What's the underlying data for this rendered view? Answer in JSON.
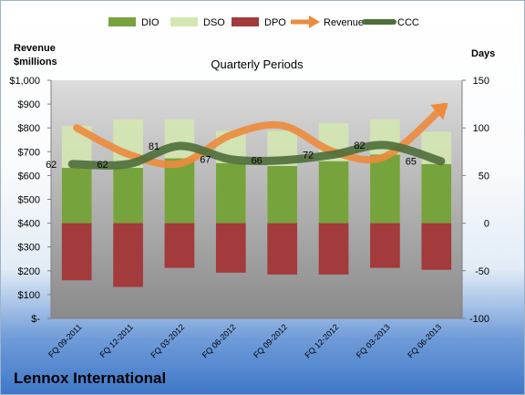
{
  "chart_data": {
    "type": "bar",
    "title": "Quarterly Periods",
    "left_axis_label": [
      "Revenue",
      "$millions"
    ],
    "right_axis_label": "Days",
    "left_ylim": [
      0,
      1000
    ],
    "right_ylim": [
      -100,
      150
    ],
    "left_ticks": [
      "$-",
      "$100",
      "$200",
      "$300",
      "$400",
      "$500",
      "$600",
      "$700",
      "$800",
      "$900",
      "$1,000"
    ],
    "right_ticks": [
      "-100",
      "-50",
      "0",
      "50",
      "100",
      "150"
    ],
    "categories": [
      "FQ 09-2011",
      "FQ 12-2011",
      "FQ 03-2012",
      "FQ 06-2012",
      "FQ 09-2012",
      "FQ 12-2012",
      "FQ 03-2013",
      "FQ 06-2013"
    ],
    "series": [
      {
        "name": "DIO",
        "type": "bar",
        "axis": "days",
        "color": "#77a33d",
        "values": [
          58,
          58,
          68,
          63,
          60,
          65,
          72,
          62
        ]
      },
      {
        "name": "DSO",
        "type": "bar",
        "axis": "days",
        "color": "#d3e8b0",
        "values": [
          102,
          109,
          109,
          97,
          97,
          105,
          109,
          96
        ]
      },
      {
        "name": "DPO",
        "type": "bar",
        "axis": "days",
        "color": "#a33a3c",
        "values": [
          -60,
          -67,
          -47,
          -52,
          -54,
          -54,
          -47,
          -49
        ]
      },
      {
        "name": "Revenue",
        "type": "line",
        "axis": "revenue",
        "color": "#ec8b3c",
        "values": [
          800,
          690,
          650,
          770,
          810,
          700,
          680,
          890
        ]
      },
      {
        "name": "CCC",
        "type": "line",
        "axis": "days",
        "color": "#4e6e3a",
        "values": [
          62,
          62,
          81,
          67,
          66,
          72,
          82,
          65
        ]
      }
    ],
    "ccc_labels": [
      "62",
      "62",
      "81",
      "67",
      "66",
      "72",
      "82",
      "65"
    ],
    "legend_position": "top",
    "grid": false
  },
  "footer": {
    "company": "Lennox International"
  }
}
